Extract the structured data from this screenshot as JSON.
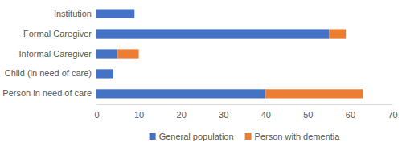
{
  "chart_data": {
    "type": "bar",
    "orientation": "horizontal",
    "stacked": true,
    "legend": "bottom",
    "categories": [
      "Institution",
      "Formal Caregiver",
      "Informal Caregiver",
      "Child (in need of care)",
      "Person in need of care"
    ],
    "series": [
      {
        "name": "General population",
        "color": "#4472c4",
        "values": [
          9,
          55,
          5,
          4,
          40
        ]
      },
      {
        "name": "Person with dementia",
        "color": "#ed7d31",
        "values": [
          0,
          4,
          5,
          0,
          23
        ]
      }
    ],
    "xlim": [
      0,
      70
    ],
    "xticks": [
      0,
      10,
      20,
      30,
      40,
      50,
      60,
      70
    ]
  }
}
